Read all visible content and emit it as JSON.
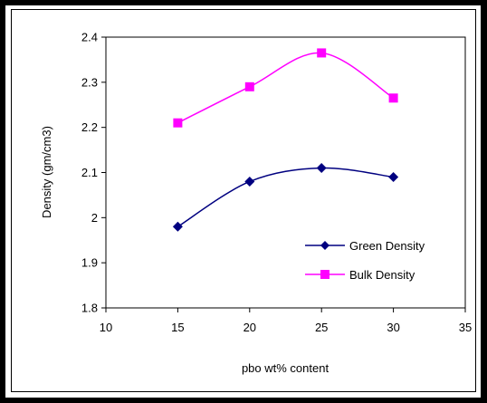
{
  "chart_data": {
    "type": "line",
    "title": "",
    "xlabel": "pbo wt% content",
    "ylabel": "Density (gm/cm3)",
    "xlim": [
      10,
      35
    ],
    "ylim": [
      1.8,
      2.4
    ],
    "xticks": [
      10,
      15,
      20,
      25,
      30,
      35
    ],
    "yticks": [
      1.8,
      1.9,
      2.0,
      2.1,
      2.2,
      2.3,
      2.4
    ],
    "xtick_labels": [
      "10",
      "15",
      "20",
      "25",
      "30",
      "35"
    ],
    "ytick_labels": [
      "1.8",
      "1.9",
      "2",
      "2.1",
      "2.2",
      "2.3",
      "2.4"
    ],
    "grid": false,
    "legend_position": "bottom-right",
    "smoothed": true,
    "series": [
      {
        "name": "Green Density",
        "marker": "diamond",
        "color": "#000080",
        "x": [
          15,
          20,
          25,
          30
        ],
        "y": [
          1.98,
          2.08,
          2.11,
          2.09
        ]
      },
      {
        "name": "Bulk Density",
        "marker": "square",
        "color": "#ff00ff",
        "x": [
          15,
          20,
          25,
          30
        ],
        "y": [
          2.21,
          2.29,
          2.365,
          2.265
        ]
      }
    ]
  }
}
